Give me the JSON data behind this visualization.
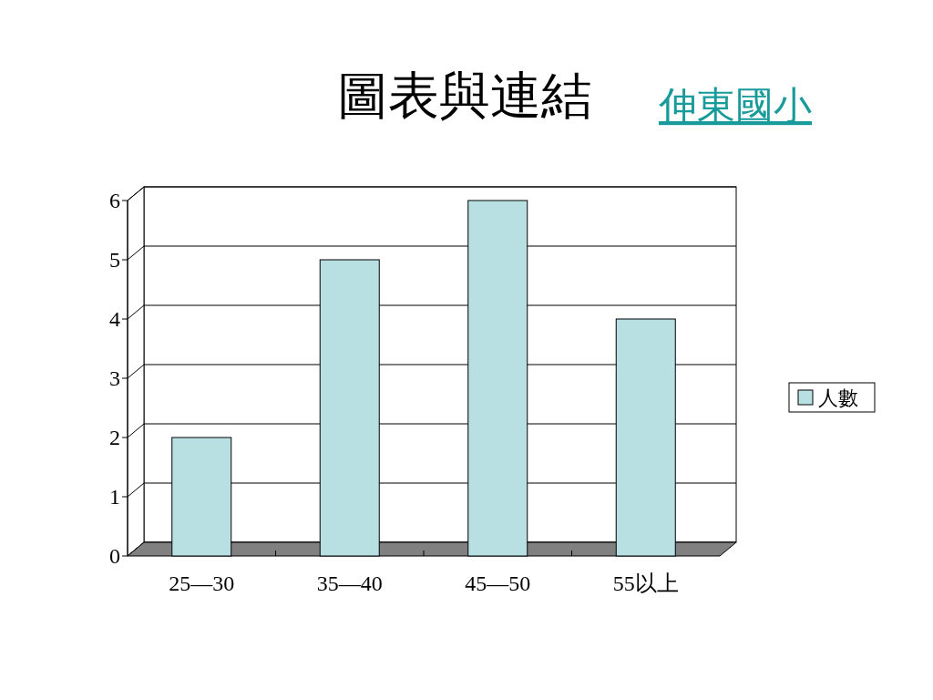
{
  "chart_data": {
    "type": "bar",
    "title": "圖表與連結",
    "subtitle": "伸東國小",
    "categories": [
      "25—30",
      "35—40",
      "45—50",
      "55以上"
    ],
    "series": [
      {
        "name": "人數",
        "color": "#b8e0e3",
        "values": [
          2,
          5,
          6,
          4
        ]
      }
    ],
    "ylim": [
      0,
      6
    ],
    "yticks": [
      0,
      1,
      2,
      3,
      4,
      5,
      6
    ],
    "grid": "y",
    "legend": "right"
  }
}
